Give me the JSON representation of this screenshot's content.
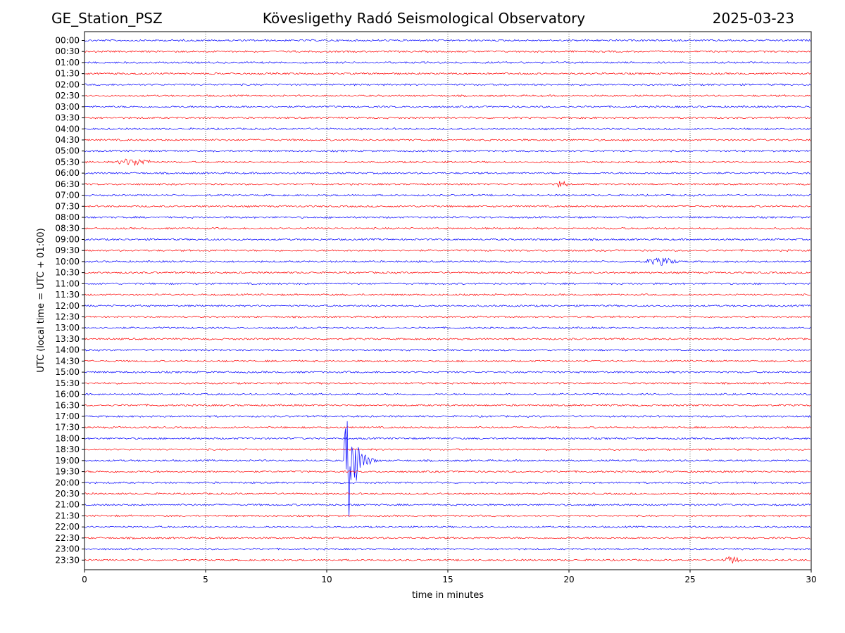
{
  "header": {
    "station": "GE_Station_PSZ",
    "observatory": "Kövesligethy Radó Seismological Observatory",
    "date": "2025-03-23"
  },
  "chart_data": {
    "type": "line",
    "subtype": "helicorder",
    "xlabel": "time in minutes",
    "ylabel": "UTC (local time = UTC + 01:00)",
    "xlim": [
      0,
      30
    ],
    "x_ticks": [
      "0",
      "5",
      "10",
      "15",
      "20",
      "25",
      "30"
    ],
    "vertical_gridlines": [
      5,
      10,
      15,
      20,
      25
    ],
    "grid": "vertical dotted",
    "row_labels": [
      "00:00",
      "00:30",
      "01:00",
      "01:30",
      "02:00",
      "02:30",
      "03:00",
      "03:30",
      "04:00",
      "04:30",
      "05:00",
      "05:30",
      "06:00",
      "06:30",
      "07:00",
      "07:30",
      "08:00",
      "08:30",
      "09:00",
      "09:30",
      "10:00",
      "10:30",
      "11:00",
      "11:30",
      "12:00",
      "12:30",
      "13:00",
      "13:30",
      "14:00",
      "14:30",
      "15:00",
      "15:30",
      "16:00",
      "16:30",
      "17:00",
      "17:30",
      "18:00",
      "18:30",
      "19:00",
      "19:30",
      "20:00",
      "20:30",
      "21:00",
      "21:30",
      "22:00",
      "22:30",
      "23:00",
      "23:30"
    ],
    "trace_colors": [
      "#0000ff",
      "#ff0000"
    ],
    "events": [
      {
        "row": "19:00",
        "start_min": 10.7,
        "peak_min": 10.9,
        "end_min": 12.2,
        "color": "#0000ff",
        "label": "earthquake (large)"
      },
      {
        "row": "05:30",
        "start_min": 1.2,
        "peak_min": 1.9,
        "end_min": 2.9,
        "color": "#ff0000",
        "label": "small burst"
      },
      {
        "row": "06:30",
        "start_min": 19.4,
        "peak_min": 19.5,
        "end_min": 20.0,
        "color": "#ff0000",
        "label": "spike"
      },
      {
        "row": "10:00",
        "start_min": 23.0,
        "peak_min": 23.8,
        "end_min": 24.6,
        "color": "#0000ff",
        "label": "small burst"
      },
      {
        "row": "23:30",
        "start_min": 26.3,
        "peak_min": 26.6,
        "end_min": 27.2,
        "color": "#ff0000",
        "label": "small burst"
      }
    ]
  }
}
